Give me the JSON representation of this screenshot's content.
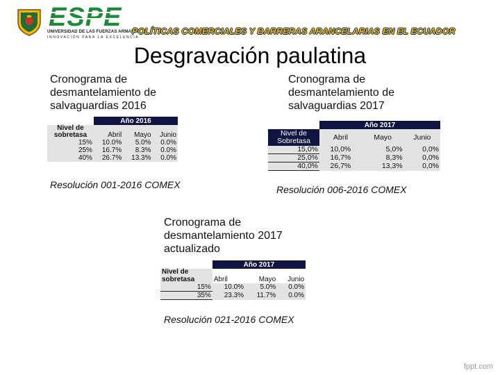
{
  "header": {
    "logo_text": "ESPE",
    "university": "UNIVERSIDAD DE LAS FUERZAS ARMADAS",
    "motto": "INNOVACIÓN PARA LA EXCELENCIA",
    "bar_title": "POLÍTICAS COMERCIALES Y BARRERAS ARANCELARIAS EN EL ECUADOR"
  },
  "title": "Desgravación paulatina",
  "block_2016": {
    "heading_lines": [
      "Cronograma de",
      "desmantelamiento de",
      "salvaguardias 2016"
    ],
    "table": {
      "year_header": "Año 2016",
      "row_label": [
        "Nivel de",
        "sobretasa"
      ],
      "columns": [
        "Abril",
        "Mayo",
        "Junio"
      ],
      "rows": [
        {
          "level": "15%",
          "values": [
            "10.0%",
            "5.0%",
            "0.0%"
          ]
        },
        {
          "level": "25%",
          "values": [
            "16.7%",
            "8.3%",
            "0.0%"
          ]
        },
        {
          "level": "40%",
          "values": [
            "26.7%",
            "13.3%",
            "0.0%"
          ]
        }
      ]
    },
    "resolution": "Resolución 001-2016 COMEX"
  },
  "block_2017": {
    "heading_lines": [
      "Cronograma de",
      "desmantelamiento de",
      "salvaguardias 2017"
    ],
    "table": {
      "year_header": "Año 2017",
      "row_label": [
        "Nivel de",
        "Sobretasa"
      ],
      "columns": [
        "Abril",
        "Mayo",
        "Junio"
      ],
      "rows": [
        {
          "level": "15,0%",
          "values": [
            "10,0%",
            "5,0%",
            "0,0%"
          ]
        },
        {
          "level": "25,0%",
          "values": [
            "16,7%",
            "8,3%",
            "0,0%"
          ]
        },
        {
          "level": "40,0%",
          "values": [
            "26,7%",
            "13,3%",
            "0,0%"
          ]
        }
      ]
    },
    "resolution": "Resolución 006-2016 COMEX"
  },
  "block_2017_updated": {
    "heading_lines": [
      "Cronograma de",
      "desmantelamiento 2017",
      "actualizado"
    ],
    "table": {
      "year_header": "Año 2017",
      "row_label": [
        "Nivel de",
        "sobretasa"
      ],
      "columns": [
        "Abril",
        "Mayo",
        "Junio"
      ],
      "rows": [
        {
          "level": "15%",
          "values": [
            "10.0%",
            "5.0%",
            "0.0%"
          ]
        },
        {
          "level": "35%",
          "values": [
            "23.3%",
            "11.7%",
            "0.0%"
          ]
        }
      ]
    },
    "resolution": "Resolución 021-2016 COMEX"
  },
  "watermark": "fppt.com",
  "colors": {
    "table_header_bg": "#0f1440",
    "header_title_fill": "#f2b800",
    "header_title_outline": "#0c2a5c",
    "logo_green": "#1f8a3a"
  }
}
